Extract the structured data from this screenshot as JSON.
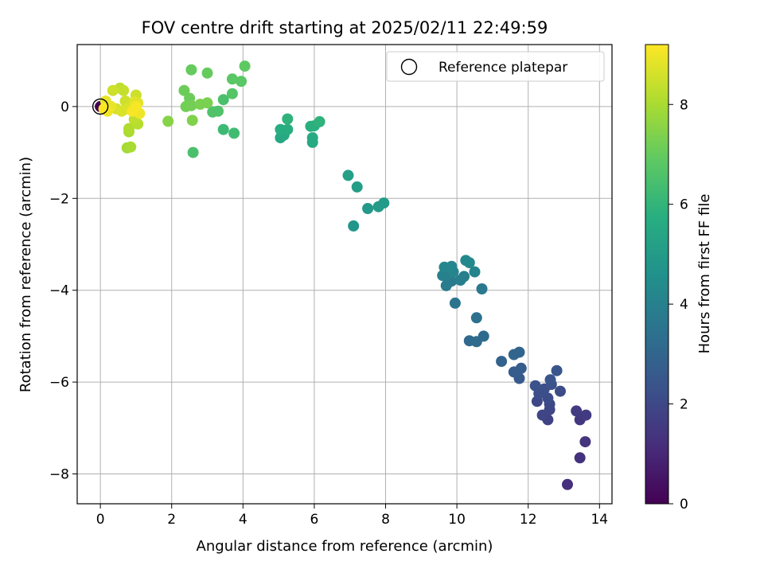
{
  "chart_data": {
    "type": "scatter",
    "title": "FOV centre drift starting at 2025/02/11 22:49:59",
    "xlabel": "Angular distance from reference (arcmin)",
    "ylabel": "Rotation from reference (arcmin)",
    "xlim": [
      -0.65,
      14.35
    ],
    "ylim": [
      -8.65,
      1.35
    ],
    "xticks": [
      0,
      2,
      4,
      6,
      8,
      10,
      12,
      14
    ],
    "yticks": [
      -8,
      -6,
      -4,
      -2,
      0
    ],
    "grid": true,
    "legend": {
      "location": "top-right",
      "entries": [
        "Reference platepar"
      ]
    },
    "colorbar": {
      "label": "Hours from first FF file",
      "colormap": "viridis",
      "range": [
        0,
        9.2
      ],
      "ticks": [
        0,
        2,
        4,
        6,
        8
      ]
    },
    "reference_point": {
      "x": 0,
      "y": 0
    },
    "points": [
      [
        0.0,
        0.0,
        0.0
      ],
      [
        13.1,
        -8.23,
        1.2
      ],
      [
        13.45,
        -7.65,
        1.3
      ],
      [
        13.6,
        -7.3,
        1.4
      ],
      [
        13.45,
        -6.82,
        1.5
      ],
      [
        13.35,
        -6.63,
        1.6
      ],
      [
        13.62,
        -6.72,
        1.6
      ],
      [
        12.55,
        -6.82,
        1.8
      ],
      [
        12.4,
        -6.72,
        1.9
      ],
      [
        12.6,
        -6.6,
        1.9
      ],
      [
        12.6,
        -6.48,
        2.0
      ],
      [
        12.25,
        -6.42,
        2.0
      ],
      [
        12.55,
        -6.35,
        2.1
      ],
      [
        12.9,
        -6.2,
        2.1
      ],
      [
        12.3,
        -6.25,
        2.2
      ],
      [
        12.45,
        -6.15,
        2.2
      ],
      [
        12.65,
        -6.05,
        2.3
      ],
      [
        12.2,
        -6.08,
        2.3
      ],
      [
        12.62,
        -5.95,
        2.4
      ],
      [
        12.8,
        -5.75,
        2.4
      ],
      [
        11.75,
        -5.92,
        2.6
      ],
      [
        11.6,
        -5.78,
        2.7
      ],
      [
        11.8,
        -5.7,
        2.7
      ],
      [
        11.25,
        -5.55,
        2.9
      ],
      [
        11.6,
        -5.4,
        3.0
      ],
      [
        11.75,
        -5.35,
        3.0
      ],
      [
        10.35,
        -5.1,
        3.1
      ],
      [
        10.55,
        -5.12,
        3.2
      ],
      [
        10.75,
        -5.0,
        3.2
      ],
      [
        10.55,
        -4.6,
        3.4
      ],
      [
        9.95,
        -4.28,
        3.5
      ],
      [
        10.7,
        -3.97,
        3.7
      ],
      [
        9.7,
        -3.9,
        3.8
      ],
      [
        9.85,
        -3.8,
        3.8
      ],
      [
        10.1,
        -3.78,
        3.9
      ],
      [
        10.2,
        -3.7,
        3.9
      ],
      [
        9.6,
        -3.68,
        4.0
      ],
      [
        9.75,
        -3.65,
        4.0
      ],
      [
        9.9,
        -3.6,
        4.1
      ],
      [
        10.5,
        -3.6,
        4.1
      ],
      [
        9.65,
        -3.5,
        4.2
      ],
      [
        9.85,
        -3.48,
        4.2
      ],
      [
        10.25,
        -3.35,
        4.3
      ],
      [
        10.35,
        -3.4,
        4.3
      ],
      [
        7.1,
        -2.6,
        4.8
      ],
      [
        7.5,
        -2.22,
        4.9
      ],
      [
        7.8,
        -2.18,
        5.0
      ],
      [
        7.95,
        -2.1,
        5.0
      ],
      [
        7.2,
        -1.75,
        5.1
      ],
      [
        6.95,
        -1.5,
        5.2
      ],
      [
        5.05,
        -0.68,
        5.5
      ],
      [
        5.15,
        -0.62,
        5.5
      ],
      [
        5.95,
        -0.78,
        5.6
      ],
      [
        5.95,
        -0.68,
        5.6
      ],
      [
        5.05,
        -0.5,
        5.7
      ],
      [
        5.25,
        -0.5,
        5.7
      ],
      [
        5.9,
        -0.43,
        5.8
      ],
      [
        6.0,
        -0.42,
        5.8
      ],
      [
        6.15,
        -0.33,
        5.9
      ],
      [
        5.25,
        -0.27,
        5.9
      ],
      [
        3.45,
        -0.5,
        6.2
      ],
      [
        3.75,
        -0.58,
        6.3
      ],
      [
        2.6,
        -1.0,
        6.5
      ],
      [
        3.45,
        0.15,
        6.5
      ],
      [
        3.3,
        -0.1,
        6.6
      ],
      [
        3.15,
        -0.12,
        6.6
      ],
      [
        3.7,
        0.28,
        6.7
      ],
      [
        3.7,
        0.6,
        6.8
      ],
      [
        3.95,
        0.55,
        6.8
      ],
      [
        4.05,
        0.88,
        6.9
      ],
      [
        2.55,
        0.8,
        7.0
      ],
      [
        3.0,
        0.73,
        7.0
      ],
      [
        2.35,
        0.35,
        7.1
      ],
      [
        2.5,
        0.18,
        7.1
      ],
      [
        2.4,
        0.0,
        7.2
      ],
      [
        2.55,
        0.02,
        7.2
      ],
      [
        2.8,
        0.05,
        7.3
      ],
      [
        3.0,
        0.08,
        7.3
      ],
      [
        2.58,
        -0.3,
        7.4
      ],
      [
        1.9,
        -0.32,
        7.5
      ],
      [
        0.75,
        -0.9,
        7.9
      ],
      [
        0.85,
        -0.88,
        8.0
      ],
      [
        0.8,
        -0.55,
        8.0
      ],
      [
        0.8,
        -0.48,
        8.1
      ],
      [
        1.05,
        -0.38,
        8.2
      ],
      [
        0.95,
        -0.28,
        8.3
      ],
      [
        0.55,
        0.4,
        8.3
      ],
      [
        0.65,
        0.35,
        8.4
      ],
      [
        0.7,
        0.12,
        8.5
      ],
      [
        0.35,
        0.35,
        8.5
      ],
      [
        1.0,
        0.25,
        8.5
      ],
      [
        0.45,
        -0.05,
        8.6
      ],
      [
        0.6,
        -0.1,
        8.7
      ],
      [
        0.75,
        -0.05,
        8.7
      ],
      [
        0.95,
        0.1,
        8.8
      ],
      [
        1.05,
        0.08,
        8.8
      ],
      [
        0.15,
        0.12,
        8.9
      ],
      [
        0.3,
        0.0,
        8.9
      ],
      [
        0.2,
        -0.1,
        9.0
      ],
      [
        1.1,
        -0.15,
        9.0
      ],
      [
        0.9,
        -0.1,
        9.1
      ],
      [
        1.0,
        0.0,
        9.1
      ],
      [
        0.1,
        -0.05,
        9.2
      ]
    ]
  }
}
